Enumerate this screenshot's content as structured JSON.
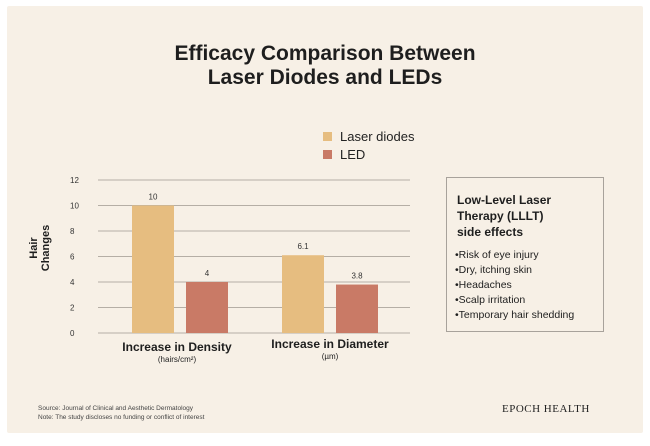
{
  "chart_data": {
    "type": "bar",
    "title": "Efficacy Comparison Between Laser Diodes and LEDs",
    "title_lines": [
      "Efficacy Comparison Between",
      "Laser Diodes and LEDs"
    ],
    "ylabel": "Hair Changes",
    "ylim": [
      0,
      12
    ],
    "yticks": [
      0,
      2,
      4,
      6,
      8,
      10,
      12
    ],
    "categories": [
      {
        "label": "Increase in Density",
        "unit": "(hairs/cm²)"
      },
      {
        "label": "Increase in Diameter",
        "unit": "(µm)"
      }
    ],
    "series": [
      {
        "name": "Laser diodes",
        "color": "#e6bd80",
        "values": [
          10,
          6.1
        ],
        "labels": [
          "10",
          "6.1"
        ]
      },
      {
        "name": "LED",
        "color": "#c97a66",
        "values": [
          4,
          3.8
        ],
        "labels": [
          "4",
          "3.8"
        ]
      }
    ],
    "legend_position": "top-right",
    "grid": true,
    "gridColor": "#b5aea5"
  },
  "sidebar": {
    "title": "Low-Level Laser Therapy (LLLT) side effects",
    "title_lines": [
      "Low-Level Laser",
      "Therapy (LLLT)",
      "side effects"
    ],
    "items": [
      "•Risk of eye injury",
      "•Dry, itching skin",
      "•Headaches",
      "•Scalp irritation",
      "•Temporary hair shedding"
    ]
  },
  "footer": {
    "source": "Source: Journal of Clinical and Aesthetic Dermatology",
    "note": "Note: The study discloses no funding or conflict of interest"
  },
  "brand": "EPOCH HEALTH",
  "colors": {
    "background": "#f7f0e6",
    "text": "#1e1e1e"
  }
}
